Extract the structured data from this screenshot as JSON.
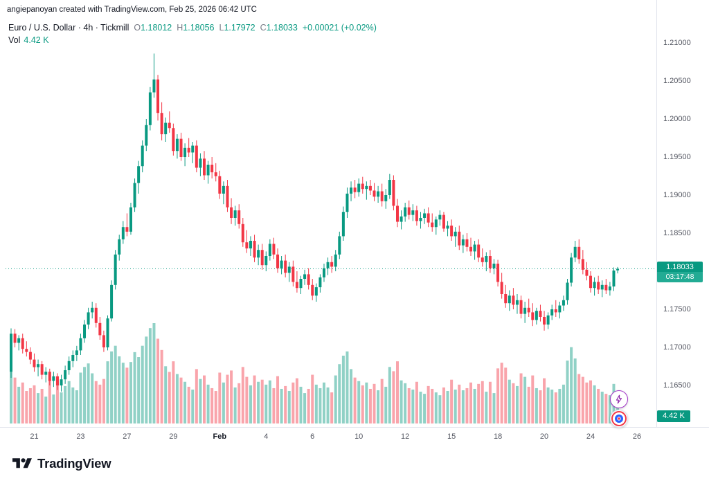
{
  "attribution": "angiepanoyan created with TradingView.com, Feb 25, 2026 06:42 UTC",
  "legend": {
    "title": "Euro / U.S. Dollar · 4h · Tickmill",
    "ohlc": [
      {
        "label": "O",
        "value": "1.18012"
      },
      {
        "label": "H",
        "value": "1.18056"
      },
      {
        "label": "L",
        "value": "1.17972"
      },
      {
        "label": "C",
        "value": "1.18033"
      }
    ],
    "change": "+0.00021 (+0.02%)",
    "vol_label": "Vol",
    "vol_value": "4.42 K"
  },
  "price_line": {
    "value": "1.18033",
    "countdown": "03:17:48"
  },
  "volume_badge": {
    "value": "4.42 K"
  },
  "footer": {
    "brand": "TradingView"
  },
  "colors": {
    "up": "#089981",
    "down": "#f23645",
    "volume_up": "rgba(8,153,129,0.45)",
    "volume_down": "rgba(242,54,69,0.45)",
    "badge": "#089981",
    "countdown_bg": "#22ab94",
    "axis_text": "#50535e",
    "text": "#131722",
    "muted": "#787b86",
    "grid": "#e0e3eb",
    "lightning": "#8e24aa",
    "target_ring": "#f23645",
    "target_fill": "#2962ff"
  },
  "chart_data": {
    "type": "candlestick",
    "title": "Euro / U.S. Dollar",
    "symbol": "EURUSD",
    "interval": "4h",
    "feed": "Tickmill",
    "ylim": [
      1.165,
      1.21
    ],
    "price_ticks": [
      "1.21000",
      "1.20500",
      "1.20000",
      "1.19500",
      "1.19000",
      "1.18500",
      "1.18000",
      "1.17500",
      "1.17000",
      "1.16500"
    ],
    "time_ticks": [
      {
        "label": "21",
        "index": 6
      },
      {
        "label": "23",
        "index": 18
      },
      {
        "label": "27",
        "index": 30
      },
      {
        "label": "29",
        "index": 42
      },
      {
        "label": "Feb",
        "index": 54,
        "major": true
      },
      {
        "label": "4",
        "index": 66
      },
      {
        "label": "6",
        "index": 78
      },
      {
        "label": "10",
        "index": 90
      },
      {
        "label": "12",
        "index": 102
      },
      {
        "label": "15",
        "index": 114
      },
      {
        "label": "18",
        "index": 126
      },
      {
        "label": "20",
        "index": 138
      },
      {
        "label": "24",
        "index": 150
      },
      {
        "label": "26",
        "index": 162
      }
    ],
    "last_values": {
      "open": 1.18012,
      "high": 1.18056,
      "low": 1.17972,
      "close": 1.18033,
      "change": "+0.00021 (+0.02%)",
      "volume_k": 4.42,
      "countdown": "03:17:48"
    },
    "candles_ohlcv": [
      [
        1.1668,
        1.1725,
        1.166,
        1.1718,
        9.0
      ],
      [
        1.1718,
        1.1724,
        1.17,
        1.1706,
        6.5
      ],
      [
        1.1706,
        1.1716,
        1.1696,
        1.1712,
        5.2
      ],
      [
        1.1712,
        1.1718,
        1.1692,
        1.1698,
        5.8
      ],
      [
        1.1698,
        1.1708,
        1.1688,
        1.1694,
        4.6
      ],
      [
        1.1694,
        1.17,
        1.1678,
        1.1684,
        5.0
      ],
      [
        1.1684,
        1.1692,
        1.1668,
        1.1674,
        5.4
      ],
      [
        1.1674,
        1.1684,
        1.1662,
        1.1678,
        4.3
      ],
      [
        1.1678,
        1.1682,
        1.1658,
        1.1664,
        4.9
      ],
      [
        1.1664,
        1.1674,
        1.1654,
        1.1668,
        3.8
      ],
      [
        1.1668,
        1.1672,
        1.165,
        1.1656,
        6.2
      ],
      [
        1.1656,
        1.1668,
        1.1648,
        1.1662,
        4.1
      ],
      [
        1.1662,
        1.1666,
        1.1644,
        1.165,
        5.9
      ],
      [
        1.165,
        1.1664,
        1.1642,
        1.1658,
        4.4
      ],
      [
        1.1658,
        1.1676,
        1.1652,
        1.167,
        5.3
      ],
      [
        1.167,
        1.1688,
        1.1664,
        1.1682,
        6.0
      ],
      [
        1.1682,
        1.1696,
        1.1674,
        1.169,
        5.1
      ],
      [
        1.169,
        1.1702,
        1.1682,
        1.1696,
        4.7
      ],
      [
        1.1696,
        1.1718,
        1.169,
        1.1712,
        7.2
      ],
      [
        1.1712,
        1.1736,
        1.1706,
        1.173,
        8.0
      ],
      [
        1.173,
        1.1752,
        1.1724,
        1.1746,
        8.5
      ],
      [
        1.1746,
        1.176,
        1.1738,
        1.1752,
        7.1
      ],
      [
        1.1752,
        1.1758,
        1.1726,
        1.1732,
        6.0
      ],
      [
        1.1732,
        1.174,
        1.171,
        1.1716,
        5.5
      ],
      [
        1.1716,
        1.1722,
        1.1694,
        1.17,
        6.3
      ],
      [
        1.17,
        1.1742,
        1.1696,
        1.1738,
        8.8
      ],
      [
        1.1738,
        1.1788,
        1.1734,
        1.1782,
        10.2
      ],
      [
        1.1782,
        1.1828,
        1.1776,
        1.1822,
        11.0
      ],
      [
        1.1822,
        1.1848,
        1.1814,
        1.1842,
        9.5
      ],
      [
        1.1842,
        1.1866,
        1.1836,
        1.1858,
        8.6
      ],
      [
        1.1858,
        1.1876,
        1.1846,
        1.1852,
        7.9
      ],
      [
        1.1852,
        1.189,
        1.1848,
        1.1884,
        8.7
      ],
      [
        1.1884,
        1.1922,
        1.1878,
        1.1916,
        10.1
      ],
      [
        1.1916,
        1.1945,
        1.1902,
        1.1938,
        9.4
      ],
      [
        1.1938,
        1.1972,
        1.193,
        1.1965,
        11.0
      ],
      [
        1.1965,
        1.2,
        1.1958,
        1.1992,
        12.3
      ],
      [
        1.1992,
        1.2042,
        1.1985,
        1.2035,
        13.5
      ],
      [
        1.2035,
        1.2086,
        1.2028,
        1.2052,
        14.2
      ],
      [
        1.2052,
        1.2058,
        1.1998,
        1.2008,
        12.0
      ],
      [
        1.2008,
        1.2022,
        1.1972,
        1.198,
        10.4
      ],
      [
        1.198,
        1.2002,
        1.197,
        1.1995,
        8.1
      ],
      [
        1.1995,
        1.201,
        1.1982,
        1.1988,
        7.3
      ],
      [
        1.1988,
        1.1994,
        1.1952,
        1.1958,
        8.8
      ],
      [
        1.1958,
        1.198,
        1.1948,
        1.1974,
        7.0
      ],
      [
        1.1974,
        1.1982,
        1.1945,
        1.195,
        6.5
      ],
      [
        1.195,
        1.1968,
        1.1938,
        1.1962,
        5.9
      ],
      [
        1.1962,
        1.1975,
        1.195,
        1.1956,
        5.2
      ],
      [
        1.1956,
        1.197,
        1.1942,
        1.1965,
        4.8
      ],
      [
        1.1965,
        1.1972,
        1.193,
        1.1936,
        7.7
      ],
      [
        1.1936,
        1.1955,
        1.1925,
        1.1948,
        6.3
      ],
      [
        1.1948,
        1.1958,
        1.192,
        1.1926,
        6.8
      ],
      [
        1.1926,
        1.1945,
        1.1915,
        1.194,
        5.5
      ],
      [
        1.194,
        1.195,
        1.1922,
        1.193,
        5.0
      ],
      [
        1.193,
        1.1942,
        1.1918,
        1.1925,
        4.6
      ],
      [
        1.1925,
        1.1932,
        1.1895,
        1.1902,
        7.2
      ],
      [
        1.1902,
        1.1918,
        1.1888,
        1.1912,
        5.8
      ],
      [
        1.1912,
        1.192,
        1.1878,
        1.1884,
        6.9
      ],
      [
        1.1884,
        1.1896,
        1.1862,
        1.187,
        7.5
      ],
      [
        1.187,
        1.1886,
        1.186,
        1.188,
        5.1
      ],
      [
        1.188,
        1.1888,
        1.1856,
        1.1862,
        5.7
      ],
      [
        1.1862,
        1.187,
        1.1832,
        1.1838,
        8.0
      ],
      [
        1.1838,
        1.1854,
        1.1824,
        1.183,
        6.6
      ],
      [
        1.183,
        1.1846,
        1.182,
        1.184,
        5.4
      ],
      [
        1.184,
        1.1848,
        1.1812,
        1.1818,
        6.8
      ],
      [
        1.1818,
        1.1835,
        1.1808,
        1.1828,
        5.9
      ],
      [
        1.1828,
        1.1836,
        1.1802,
        1.1808,
        6.2
      ],
      [
        1.1808,
        1.1826,
        1.18,
        1.182,
        5.5
      ],
      [
        1.182,
        1.1842,
        1.1814,
        1.1836,
        6.1
      ],
      [
        1.1836,
        1.1844,
        1.1816,
        1.1822,
        5.0
      ],
      [
        1.1822,
        1.183,
        1.1798,
        1.1804,
        6.7
      ],
      [
        1.1804,
        1.182,
        1.1796,
        1.1814,
        4.9
      ],
      [
        1.1814,
        1.1822,
        1.1792,
        1.1798,
        5.3
      ],
      [
        1.1798,
        1.1812,
        1.1786,
        1.1806,
        4.6
      ],
      [
        1.1806,
        1.1814,
        1.178,
        1.1786,
        5.8
      ],
      [
        1.1786,
        1.18,
        1.1772,
        1.1778,
        6.4
      ],
      [
        1.1778,
        1.1794,
        1.177,
        1.179,
        5.2
      ],
      [
        1.179,
        1.1802,
        1.1782,
        1.1796,
        4.3
      ],
      [
        1.1796,
        1.1804,
        1.1776,
        1.1782,
        4.9
      ],
      [
        1.1782,
        1.179,
        1.1762,
        1.1768,
        6.9
      ],
      [
        1.1768,
        1.1784,
        1.176,
        1.1779,
        5.5
      ],
      [
        1.1779,
        1.1796,
        1.1772,
        1.1792,
        5.0
      ],
      [
        1.1792,
        1.181,
        1.1786,
        1.1804,
        5.8
      ],
      [
        1.1804,
        1.1818,
        1.1795,
        1.1812,
        5.1
      ],
      [
        1.1812,
        1.182,
        1.1798,
        1.1806,
        4.4
      ],
      [
        1.1806,
        1.1828,
        1.18,
        1.1822,
        6.8
      ],
      [
        1.1822,
        1.1852,
        1.1816,
        1.1846,
        8.4
      ],
      [
        1.1846,
        1.1885,
        1.184,
        1.1878,
        9.6
      ],
      [
        1.1878,
        1.191,
        1.187,
        1.1902,
        10.2
      ],
      [
        1.1902,
        1.1918,
        1.1892,
        1.191,
        7.7
      ],
      [
        1.191,
        1.192,
        1.1896,
        1.1904,
        6.5
      ],
      [
        1.1904,
        1.1922,
        1.1898,
        1.1915,
        6.0
      ],
      [
        1.1915,
        1.1924,
        1.1902,
        1.1908,
        5.4
      ],
      [
        1.1908,
        1.1918,
        1.1894,
        1.1912,
        5.8
      ],
      [
        1.1912,
        1.192,
        1.19,
        1.1906,
        4.9
      ],
      [
        1.1906,
        1.1916,
        1.1892,
        1.1898,
        5.6
      ],
      [
        1.1898,
        1.1912,
        1.189,
        1.1905,
        4.7
      ],
      [
        1.1905,
        1.1915,
        1.1885,
        1.1892,
        6.3
      ],
      [
        1.1892,
        1.1908,
        1.1882,
        1.19,
        5.2
      ],
      [
        1.19,
        1.1928,
        1.1895,
        1.192,
        8.0
      ],
      [
        1.192,
        1.1926,
        1.188,
        1.1886,
        7.4
      ],
      [
        1.1886,
        1.1895,
        1.1858,
        1.1865,
        8.8
      ],
      [
        1.1865,
        1.188,
        1.1855,
        1.1872,
        6.1
      ],
      [
        1.1872,
        1.189,
        1.1865,
        1.1884,
        5.7
      ],
      [
        1.1884,
        1.1893,
        1.1868,
        1.1874,
        5.0
      ],
      [
        1.1874,
        1.1888,
        1.1866,
        1.188,
        4.8
      ],
      [
        1.188,
        1.1886,
        1.186,
        1.1866,
        5.9
      ],
      [
        1.1866,
        1.1878,
        1.1856,
        1.187,
        4.5
      ],
      [
        1.187,
        1.1882,
        1.1862,
        1.1876,
        4.2
      ],
      [
        1.1876,
        1.1884,
        1.1858,
        1.1864,
        5.3
      ],
      [
        1.1864,
        1.1876,
        1.1852,
        1.1858,
        4.9
      ],
      [
        1.1858,
        1.1872,
        1.1848,
        1.1868,
        4.4
      ],
      [
        1.1868,
        1.188,
        1.186,
        1.1874,
        4.0
      ],
      [
        1.1874,
        1.1878,
        1.1852,
        1.1856,
        5.1
      ],
      [
        1.1856,
        1.1866,
        1.1846,
        1.186,
        4.6
      ],
      [
        1.186,
        1.1868,
        1.184,
        1.1846,
        6.2
      ],
      [
        1.1846,
        1.1858,
        1.1832,
        1.1852,
        4.8
      ],
      [
        1.1852,
        1.186,
        1.1828,
        1.1834,
        5.5
      ],
      [
        1.1834,
        1.1848,
        1.1824,
        1.1842,
        4.7
      ],
      [
        1.1842,
        1.185,
        1.1826,
        1.1832,
        5.0
      ],
      [
        1.1832,
        1.1844,
        1.182,
        1.1826,
        5.8
      ],
      [
        1.1826,
        1.184,
        1.1815,
        1.1835,
        4.9
      ],
      [
        1.1835,
        1.1842,
        1.1812,
        1.1818,
        5.6
      ],
      [
        1.1818,
        1.183,
        1.1806,
        1.1812,
        6.0
      ],
      [
        1.1812,
        1.1825,
        1.18,
        1.182,
        4.5
      ],
      [
        1.182,
        1.1828,
        1.1798,
        1.1804,
        5.9
      ],
      [
        1.1804,
        1.1816,
        1.1796,
        1.181,
        4.3
      ],
      [
        1.181,
        1.1815,
        1.178,
        1.1786,
        7.8
      ],
      [
        1.1786,
        1.1798,
        1.1764,
        1.177,
        8.6
      ],
      [
        1.177,
        1.1782,
        1.1752,
        1.1758,
        7.9
      ],
      [
        1.1758,
        1.1775,
        1.1748,
        1.1768,
        6.2
      ],
      [
        1.1768,
        1.1778,
        1.175,
        1.1756,
        5.7
      ],
      [
        1.1756,
        1.177,
        1.1744,
        1.1762,
        5.3
      ],
      [
        1.1762,
        1.1768,
        1.1738,
        1.1744,
        7.1
      ],
      [
        1.1744,
        1.176,
        1.1732,
        1.1752,
        6.6
      ],
      [
        1.1752,
        1.1764,
        1.174,
        1.1746,
        5.2
      ],
      [
        1.1746,
        1.1758,
        1.1728,
        1.1736,
        6.8
      ],
      [
        1.1736,
        1.1752,
        1.173,
        1.1748,
        5.0
      ],
      [
        1.1748,
        1.1756,
        1.1734,
        1.174,
        4.7
      ],
      [
        1.174,
        1.1748,
        1.1722,
        1.173,
        6.4
      ],
      [
        1.173,
        1.1746,
        1.1724,
        1.1742,
        5.1
      ],
      [
        1.1742,
        1.1756,
        1.1736,
        1.175,
        4.8
      ],
      [
        1.175,
        1.1762,
        1.174,
        1.1746,
        4.4
      ],
      [
        1.1746,
        1.176,
        1.1738,
        1.1755,
        4.9
      ],
      [
        1.1755,
        1.1768,
        1.1748,
        1.1762,
        5.5
      ],
      [
        1.1762,
        1.179,
        1.1756,
        1.1785,
        8.9
      ],
      [
        1.1785,
        1.1824,
        1.178,
        1.1818,
        10.8
      ],
      [
        1.1818,
        1.184,
        1.1812,
        1.1832,
        9.2
      ],
      [
        1.1832,
        1.1842,
        1.181,
        1.1816,
        7.0
      ],
      [
        1.1816,
        1.1828,
        1.1796,
        1.1802,
        6.6
      ],
      [
        1.1802,
        1.1812,
        1.1788,
        1.1794,
        5.8
      ],
      [
        1.1794,
        1.18,
        1.1772,
        1.1778,
        6.1
      ],
      [
        1.1778,
        1.1792,
        1.1768,
        1.1786,
        5.4
      ],
      [
        1.1786,
        1.1794,
        1.177,
        1.1776,
        4.9
      ],
      [
        1.1776,
        1.1788,
        1.1766,
        1.1782,
        4.5
      ],
      [
        1.1782,
        1.179,
        1.177,
        1.1775,
        4.2
      ],
      [
        1.1775,
        1.1786,
        1.1768,
        1.178,
        4.0
      ],
      [
        1.178,
        1.1805,
        1.1774,
        1.1801,
        5.6
      ],
      [
        1.18012,
        1.18056,
        1.17972,
        1.18033,
        4.42
      ]
    ]
  }
}
